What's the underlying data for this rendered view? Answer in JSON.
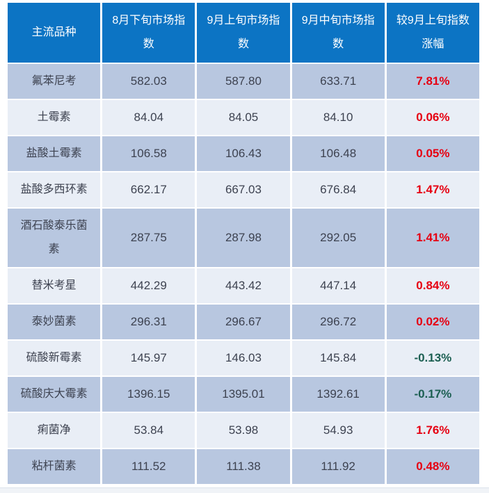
{
  "colors": {
    "header_bg": "#0c74c4",
    "row_dark": "#b8c7e0",
    "row_light": "#e9eef6",
    "text": "#3d4250",
    "up_red": "#e60012",
    "down_green": "#1c5f52"
  },
  "table": {
    "columns": [
      {
        "label": "主流品种"
      },
      {
        "label": "8月下旬市场指\n数"
      },
      {
        "label": "9月上旬市场指\n数"
      },
      {
        "label": "9月中旬市场指\n数"
      },
      {
        "label": "较9月上旬指数\n涨幅"
      }
    ],
    "rows": [
      {
        "name": "氟苯尼考",
        "late_aug": "582.03",
        "early_sep": "587.80",
        "mid_sep": "633.71",
        "change": "7.81%"
      },
      {
        "name": "土霉素",
        "late_aug": "84.04",
        "early_sep": "84.05",
        "mid_sep": "84.10",
        "change": "0.06%"
      },
      {
        "name": "盐酸土霉素",
        "late_aug": "106.58",
        "early_sep": "106.43",
        "mid_sep": "106.48",
        "change": "0.05%"
      },
      {
        "name": "盐酸多西环素",
        "late_aug": "662.17",
        "early_sep": "667.03",
        "mid_sep": "676.84",
        "change": "1.47%"
      },
      {
        "name": "酒石酸泰乐菌\n素",
        "late_aug": "287.75",
        "early_sep": "287.98",
        "mid_sep": "292.05",
        "change": "1.41%"
      },
      {
        "name": "替米考星",
        "late_aug": "442.29",
        "early_sep": "443.42",
        "mid_sep": "447.14",
        "change": "0.84%"
      },
      {
        "name": "泰妙菌素",
        "late_aug": "296.31",
        "early_sep": "296.67",
        "mid_sep": "296.72",
        "change": "0.02%"
      },
      {
        "name": "硫酸新霉素",
        "late_aug": "145.97",
        "early_sep": "146.03",
        "mid_sep": "145.84",
        "change": "-0.13%"
      },
      {
        "name": "硫酸庆大霉素",
        "late_aug": "1396.15",
        "early_sep": "1395.01",
        "mid_sep": "1392.61",
        "change": "-0.17%"
      },
      {
        "name": "痢菌净",
        "late_aug": "53.84",
        "early_sep": "53.98",
        "mid_sep": "54.93",
        "change": "1.76%"
      },
      {
        "name": "粘杆菌素",
        "late_aug": "111.52",
        "early_sep": "111.38",
        "mid_sep": "111.92",
        "change": "0.48%"
      }
    ]
  },
  "chart_data": {
    "type": "table",
    "title": "",
    "columns": [
      "主流品种",
      "8月下旬市场指数",
      "9月上旬市场指数",
      "9月中旬市场指数",
      "较9月上旬指数涨幅"
    ],
    "rows": [
      [
        "氟苯尼考",
        582.03,
        587.8,
        633.71,
        "7.81%"
      ],
      [
        "土霉素",
        84.04,
        84.05,
        84.1,
        "0.06%"
      ],
      [
        "盐酸土霉素",
        106.58,
        106.43,
        106.48,
        "0.05%"
      ],
      [
        "盐酸多西环素",
        662.17,
        667.03,
        676.84,
        "1.47%"
      ],
      [
        "酒石酸泰乐菌素",
        287.75,
        287.98,
        292.05,
        "1.41%"
      ],
      [
        "替米考星",
        442.29,
        443.42,
        447.14,
        "0.84%"
      ],
      [
        "泰妙菌素",
        296.31,
        296.67,
        296.72,
        "0.02%"
      ],
      [
        "硫酸新霉素",
        145.97,
        146.03,
        145.84,
        "-0.13%"
      ],
      [
        "硫酸庆大霉素",
        1396.15,
        1395.01,
        1392.61,
        "-0.17%"
      ],
      [
        "痢菌净",
        53.84,
        53.98,
        54.93,
        "1.76%"
      ],
      [
        "粘杆菌素",
        111.52,
        111.38,
        111.92,
        "0.48%"
      ]
    ]
  }
}
